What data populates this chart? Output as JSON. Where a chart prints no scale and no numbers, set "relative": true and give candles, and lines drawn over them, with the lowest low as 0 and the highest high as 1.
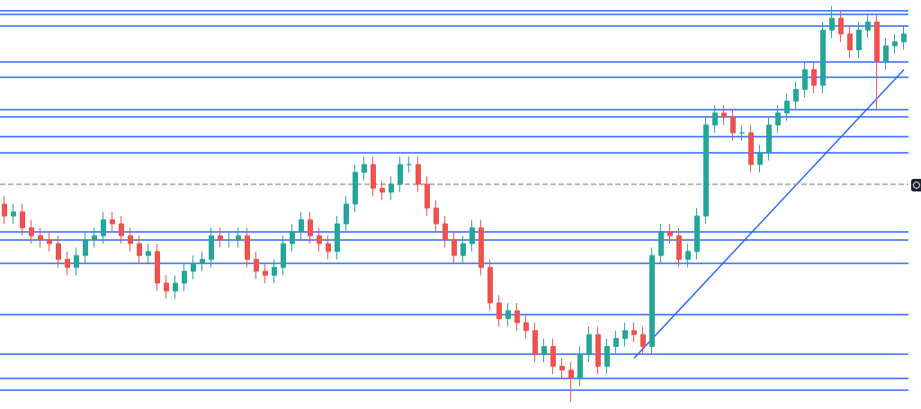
{
  "chart_data": {
    "type": "candlestick",
    "relative": true,
    "categories": [
      null,
      null,
      null,
      null,
      null,
      null,
      null,
      null,
      null,
      null,
      null,
      null,
      null,
      null,
      null,
      null,
      null,
      null,
      null,
      null,
      null,
      null,
      null,
      null,
      null,
      null,
      null,
      null,
      null,
      null,
      null,
      null,
      null,
      null,
      null,
      null,
      null,
      null,
      null,
      null,
      null,
      null,
      null,
      null,
      null,
      null,
      null,
      null,
      null,
      null,
      null,
      null,
      null,
      null,
      null,
      null,
      null,
      null,
      null,
      null,
      null,
      null,
      null,
      null,
      null,
      null,
      null,
      null,
      null,
      null,
      null,
      null,
      null,
      null,
      null,
      null,
      null,
      null,
      null,
      null,
      null,
      null,
      null,
      null,
      null,
      null,
      null,
      null,
      null,
      null,
      null,
      null,
      null,
      null,
      null,
      null,
      null,
      null,
      null,
      null,
      null
    ],
    "series": [
      {
        "ohlc": [
          [
            0.5,
            0.52,
            0.45,
            0.47
          ],
          [
            0.47,
            0.5,
            0.45,
            0.48
          ],
          [
            0.48,
            0.5,
            0.42,
            0.44
          ],
          [
            0.44,
            0.46,
            0.4,
            0.42
          ],
          [
            0.42,
            0.44,
            0.39,
            0.41
          ],
          [
            0.41,
            0.43,
            0.38,
            0.4
          ],
          [
            0.4,
            0.42,
            0.34,
            0.36
          ],
          [
            0.36,
            0.38,
            0.32,
            0.34
          ],
          [
            0.34,
            0.39,
            0.32,
            0.37
          ],
          [
            0.37,
            0.43,
            0.35,
            0.41
          ],
          [
            0.41,
            0.44,
            0.39,
            0.42
          ],
          [
            0.42,
            0.48,
            0.4,
            0.46
          ],
          [
            0.46,
            0.48,
            0.43,
            0.45
          ],
          [
            0.45,
            0.47,
            0.4,
            0.42
          ],
          [
            0.42,
            0.44,
            0.38,
            0.4
          ],
          [
            0.4,
            0.42,
            0.35,
            0.37
          ],
          [
            0.37,
            0.4,
            0.35,
            0.38
          ],
          [
            0.38,
            0.4,
            0.28,
            0.3
          ],
          [
            0.3,
            0.32,
            0.26,
            0.28
          ],
          [
            0.28,
            0.32,
            0.26,
            0.3
          ],
          [
            0.3,
            0.35,
            0.28,
            0.33
          ],
          [
            0.33,
            0.37,
            0.31,
            0.35
          ],
          [
            0.35,
            0.38,
            0.33,
            0.36
          ],
          [
            0.36,
            0.44,
            0.34,
            0.42
          ],
          [
            0.42,
            0.44,
            0.39,
            0.41
          ],
          [
            0.41,
            0.43,
            0.39,
            0.41
          ],
          [
            0.41,
            0.44,
            0.39,
            0.42
          ],
          [
            0.42,
            0.44,
            0.34,
            0.36
          ],
          [
            0.36,
            0.38,
            0.31,
            0.33
          ],
          [
            0.33,
            0.35,
            0.3,
            0.32
          ],
          [
            0.32,
            0.36,
            0.3,
            0.34
          ],
          [
            0.34,
            0.42,
            0.32,
            0.4
          ],
          [
            0.4,
            0.45,
            0.38,
            0.43
          ],
          [
            0.43,
            0.48,
            0.41,
            0.46
          ],
          [
            0.46,
            0.48,
            0.4,
            0.42
          ],
          [
            0.42,
            0.44,
            0.38,
            0.4
          ],
          [
            0.4,
            0.42,
            0.36,
            0.38
          ],
          [
            0.38,
            0.47,
            0.36,
            0.45
          ],
          [
            0.45,
            0.52,
            0.43,
            0.5
          ],
          [
            0.5,
            0.6,
            0.48,
            0.58
          ],
          [
            0.58,
            0.62,
            0.56,
            0.6
          ],
          [
            0.6,
            0.62,
            0.52,
            0.54
          ],
          [
            0.54,
            0.56,
            0.51,
            0.53
          ],
          [
            0.53,
            0.57,
            0.51,
            0.55
          ],
          [
            0.55,
            0.62,
            0.53,
            0.6
          ],
          [
            0.6,
            0.62,
            0.58,
            0.6
          ],
          [
            0.6,
            0.62,
            0.53,
            0.55
          ],
          [
            0.55,
            0.57,
            0.47,
            0.49
          ],
          [
            0.49,
            0.51,
            0.43,
            0.45
          ],
          [
            0.45,
            0.47,
            0.39,
            0.41
          ],
          [
            0.41,
            0.43,
            0.35,
            0.37
          ],
          [
            0.37,
            0.42,
            0.35,
            0.4
          ],
          [
            0.4,
            0.46,
            0.38,
            0.44
          ],
          [
            0.44,
            0.46,
            0.32,
            0.34
          ],
          [
            0.34,
            0.36,
            0.23,
            0.25
          ],
          [
            0.25,
            0.27,
            0.19,
            0.21
          ],
          [
            0.21,
            0.25,
            0.19,
            0.23
          ],
          [
            0.23,
            0.25,
            0.18,
            0.2
          ],
          [
            0.2,
            0.22,
            0.16,
            0.18
          ],
          [
            0.18,
            0.2,
            0.1,
            0.12
          ],
          [
            0.12,
            0.16,
            0.1,
            0.14
          ],
          [
            0.14,
            0.16,
            0.07,
            0.09
          ],
          [
            0.09,
            0.11,
            0.06,
            0.08
          ],
          [
            0.08,
            0.1,
            0.0,
            0.06
          ],
          [
            0.06,
            0.14,
            0.04,
            0.12
          ],
          [
            0.12,
            0.19,
            0.1,
            0.17
          ],
          [
            0.17,
            0.19,
            0.07,
            0.09
          ],
          [
            0.09,
            0.16,
            0.07,
            0.14
          ],
          [
            0.14,
            0.18,
            0.12,
            0.16
          ],
          [
            0.16,
            0.2,
            0.14,
            0.18
          ],
          [
            0.18,
            0.2,
            0.15,
            0.17
          ],
          [
            0.17,
            0.19,
            0.12,
            0.14
          ],
          [
            0.14,
            0.39,
            0.12,
            0.37
          ],
          [
            0.37,
            0.45,
            0.35,
            0.43
          ],
          [
            0.43,
            0.45,
            0.4,
            0.42
          ],
          [
            0.42,
            0.44,
            0.34,
            0.36
          ],
          [
            0.36,
            0.4,
            0.34,
            0.38
          ],
          [
            0.38,
            0.49,
            0.36,
            0.47
          ],
          [
            0.47,
            0.72,
            0.45,
            0.7
          ],
          [
            0.7,
            0.75,
            0.68,
            0.73
          ],
          [
            0.73,
            0.75,
            0.7,
            0.72
          ],
          [
            0.72,
            0.74,
            0.66,
            0.68
          ],
          [
            0.68,
            0.7,
            0.66,
            0.68
          ],
          [
            0.68,
            0.7,
            0.58,
            0.6
          ],
          [
            0.6,
            0.65,
            0.58,
            0.63
          ],
          [
            0.63,
            0.72,
            0.61,
            0.7
          ],
          [
            0.7,
            0.75,
            0.68,
            0.73
          ],
          [
            0.73,
            0.78,
            0.71,
            0.76
          ],
          [
            0.76,
            0.81,
            0.74,
            0.79
          ],
          [
            0.79,
            0.86,
            0.77,
            0.84
          ],
          [
            0.84,
            0.86,
            0.78,
            0.8
          ],
          [
            0.8,
            0.96,
            0.78,
            0.94
          ],
          [
            0.94,
            1.0,
            0.92,
            0.97
          ],
          [
            0.97,
            0.99,
            0.91,
            0.93
          ],
          [
            0.93,
            0.95,
            0.87,
            0.89
          ],
          [
            0.89,
            0.96,
            0.87,
            0.94
          ],
          [
            0.94,
            0.98,
            0.92,
            0.96
          ],
          [
            0.96,
            0.98,
            0.74,
            0.86
          ],
          [
            0.86,
            0.92,
            0.84,
            0.9
          ],
          [
            0.9,
            0.93,
            0.88,
            0.91
          ],
          [
            0.91,
            0.95,
            0.89,
            0.93
          ]
        ],
        "colors": [
          "#ef5350",
          "#26a69a",
          "#ef5350",
          "#ef5350",
          "#ef5350",
          "#ef5350",
          "#ef5350",
          "#ef5350",
          "#26a69a",
          "#26a69a",
          "#26a69a",
          "#26a69a",
          "#ef5350",
          "#ef5350",
          "#ef5350",
          "#ef5350",
          "#26a69a",
          "#ef5350",
          "#ef5350",
          "#26a69a",
          "#26a69a",
          "#26a69a",
          "#26a69a",
          "#26a69a",
          "#ef5350",
          "#26a69a",
          "#26a69a",
          "#ef5350",
          "#ef5350",
          "#ef5350",
          "#26a69a",
          "#26a69a",
          "#26a69a",
          "#26a69a",
          "#ef5350",
          "#ef5350",
          "#ef5350",
          "#26a69a",
          "#26a69a",
          "#26a69a",
          "#26a69a",
          "#ef5350",
          "#ef5350",
          "#26a69a",
          "#26a69a",
          "#26a69a",
          "#ef5350",
          "#ef5350",
          "#ef5350",
          "#ef5350",
          "#ef5350",
          "#26a69a",
          "#26a69a",
          "#ef5350",
          "#ef5350",
          "#ef5350",
          "#26a69a",
          "#ef5350",
          "#ef5350",
          "#ef5350",
          "#26a69a",
          "#ef5350",
          "#ef5350",
          "#ef5350",
          "#26a69a",
          "#26a69a",
          "#ef5350",
          "#26a69a",
          "#26a69a",
          "#26a69a",
          "#ef5350",
          "#ef5350",
          "#26a69a",
          "#26a69a",
          "#ef5350",
          "#ef5350",
          "#26a69a",
          "#26a69a",
          "#26a69a",
          "#26a69a",
          "#ef5350",
          "#ef5350",
          "#26a69a",
          "#ef5350",
          "#26a69a",
          "#26a69a",
          "#26a69a",
          "#26a69a",
          "#26a69a",
          "#26a69a",
          "#ef5350",
          "#26a69a",
          "#26a69a",
          "#ef5350",
          "#ef5350",
          "#26a69a",
          "#26a69a",
          "#ef5350",
          "#26a69a",
          "#26a69a",
          "#26a69a"
        ]
      },
      {
        "type": "line",
        "color": "#2962ff",
        "values": [
          null,
          null,
          null,
          null,
          null,
          null,
          null,
          null,
          null,
          null,
          null,
          null,
          null,
          null,
          null,
          null,
          null,
          null,
          null,
          null,
          null,
          null,
          null,
          null,
          null,
          null,
          null,
          null,
          null,
          null,
          null,
          null,
          null,
          null,
          null,
          null,
          null,
          null,
          null,
          null,
          null,
          null,
          null,
          null,
          null,
          null,
          null,
          null,
          null,
          null,
          null,
          null,
          null,
          null,
          null,
          null,
          null,
          null,
          null,
          null,
          null,
          null,
          null,
          null,
          null,
          null,
          null,
          null,
          null,
          null,
          0.11,
          null,
          null,
          null,
          null,
          null,
          null,
          null,
          null,
          null,
          null,
          null,
          null,
          null,
          null,
          null,
          null,
          null,
          null,
          null,
          null,
          null,
          null,
          null,
          null,
          null,
          null,
          null,
          null,
          null,
          0.84
        ]
      }
    ],
    "ref_lines": [
      {
        "axis": "y",
        "value": 0.99,
        "color": "#2962ff"
      },
      {
        "axis": "y",
        "value": 0.98,
        "color": "#2962ff"
      },
      {
        "axis": "y",
        "value": 0.95,
        "color": "#2962ff"
      },
      {
        "axis": "y",
        "value": 0.86,
        "color": "#2962ff"
      },
      {
        "axis": "y",
        "value": 0.82,
        "color": "#2962ff"
      },
      {
        "axis": "y",
        "value": 0.74,
        "color": "#2962ff"
      },
      {
        "axis": "y",
        "value": 0.72,
        "color": "#2962ff"
      },
      {
        "axis": "y",
        "value": 0.67,
        "color": "#2962ff"
      },
      {
        "axis": "y",
        "value": 0.63,
        "color": "#2962ff"
      },
      {
        "axis": "y",
        "value": 0.55,
        "color": "#9e9e9e",
        "line_style": "dashed"
      },
      {
        "axis": "y",
        "value": 0.43,
        "color": "#2962ff"
      },
      {
        "axis": "y",
        "value": 0.41,
        "color": "#2962ff"
      },
      {
        "axis": "y",
        "value": 0.35,
        "color": "#2962ff"
      },
      {
        "axis": "y",
        "value": 0.22,
        "color": "#2962ff"
      },
      {
        "axis": "y",
        "value": 0.12,
        "color": "#2962ff"
      },
      {
        "axis": "y",
        "value": 0.06,
        "color": "#2962ff"
      },
      {
        "axis": "y",
        "value": 0.03,
        "color": "#2962ff"
      }
    ]
  }
}
